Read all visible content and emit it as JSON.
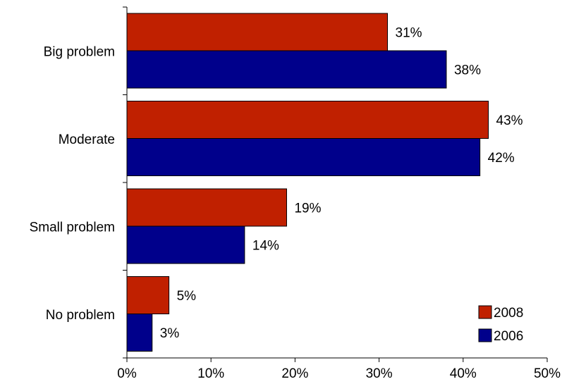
{
  "chart_data": {
    "type": "bar",
    "orientation": "horizontal",
    "categories": [
      "Big problem",
      "Moderate",
      "Small problem",
      "No problem"
    ],
    "series": [
      {
        "name": "2008",
        "values": [
          31,
          43,
          19,
          5
        ],
        "labels": [
          "31%",
          "43%",
          "19%",
          "5%"
        ],
        "color": "#c02000"
      },
      {
        "name": "2006",
        "values": [
          38,
          42,
          14,
          3
        ],
        "labels": [
          "38%",
          "42%",
          "14%",
          "3%"
        ],
        "color": "#00008b"
      }
    ],
    "xlim": [
      0,
      50
    ],
    "xticks": [
      0,
      10,
      20,
      30,
      40,
      50
    ],
    "xtick_labels": [
      "0%",
      "10%",
      "20%",
      "30%",
      "40%",
      "50%"
    ],
    "title": "",
    "xlabel": "",
    "ylabel": "",
    "grid": false,
    "legend_position": "bottom-right"
  }
}
